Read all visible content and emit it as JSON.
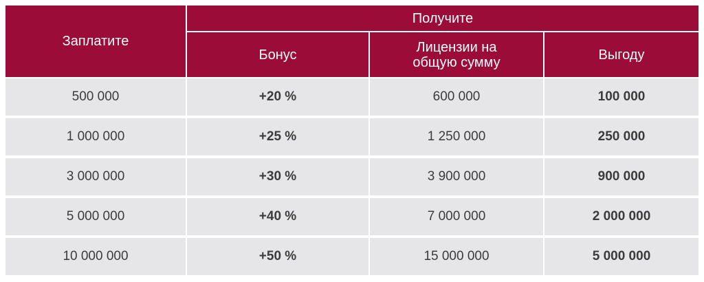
{
  "header": {
    "pay": "Заплатите",
    "get": "Получите",
    "bonus": "Бонус",
    "licenses_line1": "Лицензии на",
    "licenses_line2": "общую сумму",
    "benefit": "Выгоду"
  },
  "rows": [
    {
      "pay": "500 000",
      "bonus": "+20 %",
      "licenses": "600 000",
      "benefit": "100 000"
    },
    {
      "pay": "1 000 000",
      "bonus": "+25 %",
      "licenses": "1 250 000",
      "benefit": "250 000"
    },
    {
      "pay": "3 000 000",
      "bonus": "+30 %",
      "licenses": "3 900 000",
      "benefit": "900 000"
    },
    {
      "pay": "5 000 000",
      "bonus": "+40 %",
      "licenses": "7 000 000",
      "benefit": "2 000 000"
    },
    {
      "pay": "10 000 000",
      "bonus": "+50 %",
      "licenses": "15 000 000",
      "benefit": "5 000 000"
    }
  ],
  "colors": {
    "header_bg": "#9b0c39",
    "header_text": "#ffffff",
    "row_bg": "#e6e6e8",
    "row_text": "#3b3b3b"
  }
}
